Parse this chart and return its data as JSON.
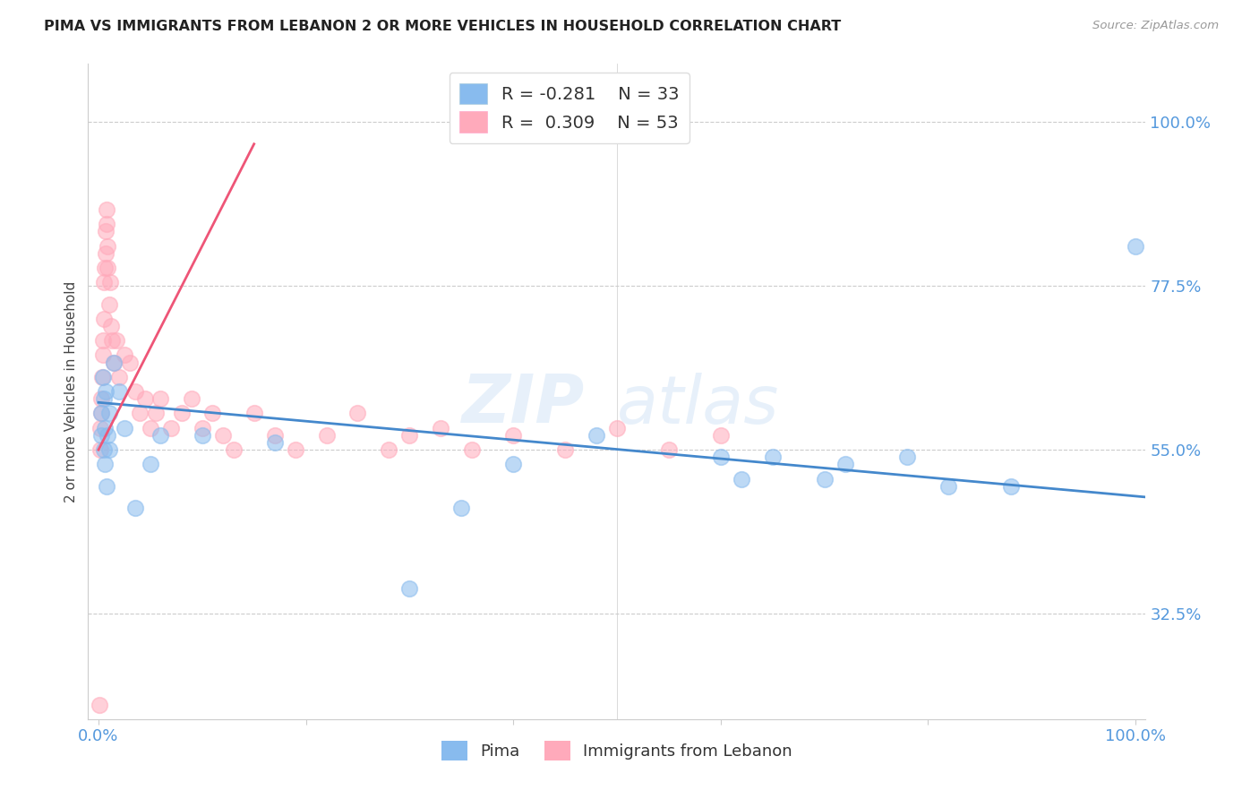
{
  "title": "PIMA VS IMMIGRANTS FROM LEBANON 2 OR MORE VEHICLES IN HOUSEHOLD CORRELATION CHART",
  "source_text": "Source: ZipAtlas.com",
  "ylabel": "2 or more Vehicles in Household",
  "watermark_line1": "ZIP",
  "watermark_line2": "atlas",
  "legend_label_blue": "Pima",
  "legend_label_pink": "Immigrants from Lebanon",
  "legend_blue_r": "-0.281",
  "legend_blue_n": "33",
  "legend_pink_r": "0.309",
  "legend_pink_n": "53",
  "xlim": [
    -1.0,
    101.0
  ],
  "ylim": [
    18.0,
    108.0
  ],
  "ytick_values": [
    32.5,
    55.0,
    77.5,
    100.0
  ],
  "color_blue": "#88BBEE",
  "color_blue_edge": "#88BBEE",
  "color_pink": "#FFAABB",
  "color_pink_edge": "#FFAABB",
  "color_blue_line": "#4488CC",
  "color_pink_line": "#EE5577",
  "background": "#FFFFFF",
  "tick_color": "#5599DD",
  "pima_x": [
    0.3,
    0.3,
    0.4,
    0.5,
    0.5,
    0.6,
    0.6,
    0.7,
    0.8,
    0.9,
    1.0,
    1.0,
    1.5,
    2.0,
    2.5,
    3.5,
    5.0,
    6.0,
    10.0,
    17.0,
    30.0,
    35.0,
    40.0,
    48.0,
    60.0,
    62.0,
    65.0,
    70.0,
    72.0,
    78.0,
    82.0,
    88.0,
    100.0
  ],
  "pima_y": [
    57.0,
    60.0,
    65.0,
    55.0,
    62.0,
    58.0,
    53.0,
    63.0,
    50.0,
    57.0,
    55.0,
    60.0,
    67.0,
    63.0,
    58.0,
    47.0,
    53.0,
    57.0,
    57.0,
    56.0,
    36.0,
    47.0,
    53.0,
    57.0,
    54.0,
    51.0,
    54.0,
    51.0,
    53.0,
    54.0,
    50.0,
    50.0,
    83.0
  ],
  "leb_x": [
    0.1,
    0.15,
    0.2,
    0.25,
    0.3,
    0.35,
    0.4,
    0.45,
    0.5,
    0.55,
    0.6,
    0.65,
    0.7,
    0.75,
    0.8,
    0.85,
    0.9,
    1.0,
    1.1,
    1.2,
    1.3,
    1.5,
    1.7,
    2.0,
    2.5,
    3.0,
    3.5,
    4.0,
    4.5,
    5.0,
    5.5,
    6.0,
    7.0,
    8.0,
    9.0,
    10.0,
    11.0,
    12.0,
    13.0,
    15.0,
    17.0,
    19.0,
    22.0,
    25.0,
    28.0,
    30.0,
    33.0,
    36.0,
    40.0,
    45.0,
    50.0,
    55.0,
    60.0
  ],
  "leb_y": [
    20.0,
    58.0,
    55.0,
    62.0,
    60.0,
    65.0,
    68.0,
    70.0,
    73.0,
    78.0,
    80.0,
    82.0,
    85.0,
    88.0,
    86.0,
    83.0,
    80.0,
    75.0,
    78.0,
    72.0,
    70.0,
    67.0,
    70.0,
    65.0,
    68.0,
    67.0,
    63.0,
    60.0,
    62.0,
    58.0,
    60.0,
    62.0,
    58.0,
    60.0,
    62.0,
    58.0,
    60.0,
    57.0,
    55.0,
    60.0,
    57.0,
    55.0,
    57.0,
    60.0,
    55.0,
    57.0,
    58.0,
    55.0,
    57.0,
    55.0,
    58.0,
    55.0,
    57.0
  ],
  "blue_line_x0": 0.0,
  "blue_line_x1": 101.0,
  "blue_line_y0": 61.5,
  "blue_line_y1": 48.5,
  "pink_line_x0": 0.0,
  "pink_line_x1": 15.0,
  "pink_line_y0": 55.0,
  "pink_line_y1": 97.0
}
